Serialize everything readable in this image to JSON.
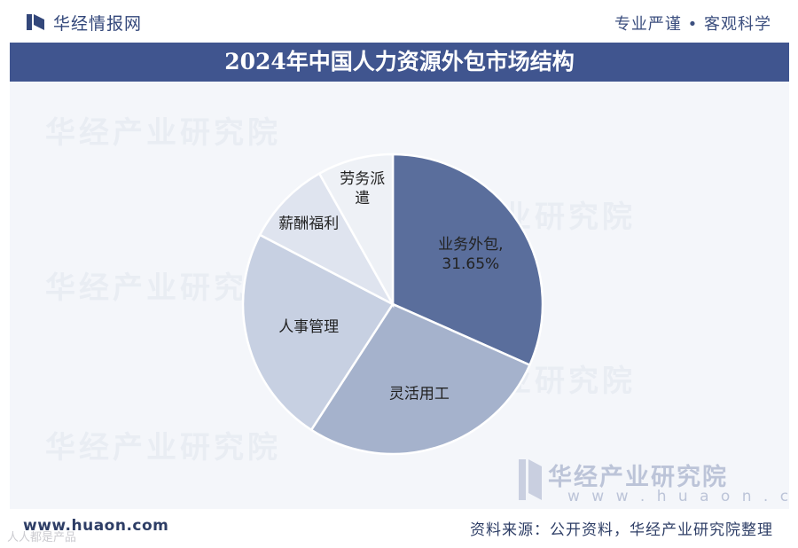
{
  "header": {
    "brand": "华经情报网",
    "slogan": "专业严谨 • 客观科学"
  },
  "watermarks": {
    "text": "华经产业研究院",
    "brand_text": "华经产业研究院",
    "url": "w w w . h u a o n . c o m"
  },
  "footer": {
    "url": "www.huaon.com",
    "source": "资料来源：公开资料，华经产业研究院整理",
    "tag": "人人都是产品"
  },
  "colors": {
    "banner": "#40558f",
    "slices": [
      "#5a6e9c",
      "#a5b2cc",
      "#c7d0e2",
      "#dfe4ef",
      "#eef1f6"
    ]
  },
  "chart_data": {
    "type": "pie",
    "title": "2024年中国人力资源外包市场结构",
    "slices": [
      {
        "label": "业务外包",
        "value": 31.65,
        "value_label": "31.65%",
        "display": "业务外包,"
      },
      {
        "label": "灵活用工",
        "value": 27.5
      },
      {
        "label": "人事管理",
        "value": 23.5
      },
      {
        "label": "薪酬福利",
        "value": 9.2
      },
      {
        "label": "劳务派遣",
        "value": 8.15,
        "display_lines": [
          "劳务派",
          "遣"
        ]
      }
    ],
    "legend": "none",
    "start_angle_deg": 0,
    "direction": "clockwise"
  }
}
